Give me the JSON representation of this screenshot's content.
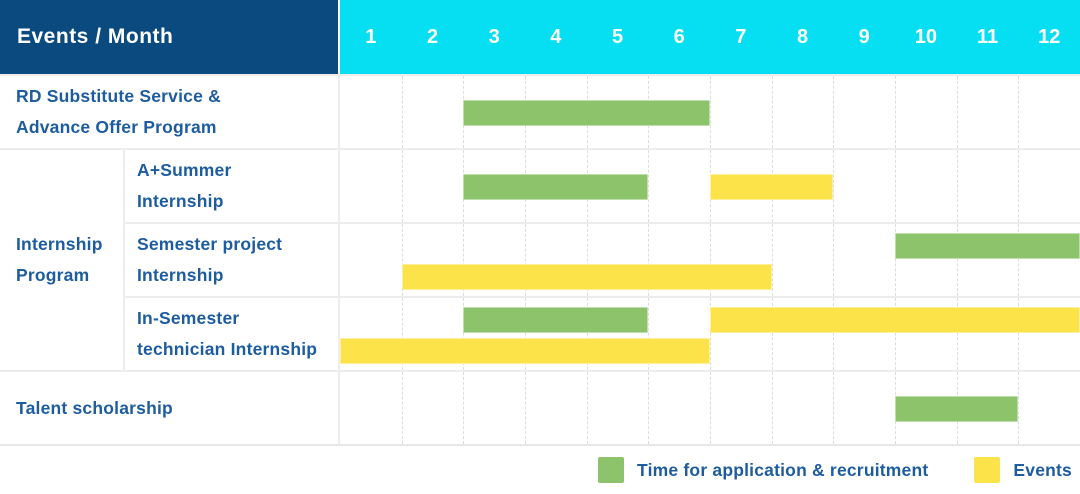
{
  "header": {
    "title": "Events / Month",
    "months": [
      "1",
      "2",
      "3",
      "4",
      "5",
      "6",
      "7",
      "8",
      "9",
      "10",
      "11",
      "12"
    ]
  },
  "gantt": {
    "group_label_lines": [
      "Internship",
      "Program"
    ],
    "rows": [
      {
        "label_lines": [
          "RD Substitute Service &",
          "Advance Offer Program"
        ],
        "bars": [
          {
            "color": "green",
            "track": "single",
            "start": 3,
            "end": 6
          }
        ]
      },
      {
        "label_lines": [
          "A+Summer",
          "Internship"
        ],
        "bars": [
          {
            "color": "green",
            "track": "single",
            "start": 3,
            "end": 5
          },
          {
            "color": "yellow",
            "track": "single",
            "start": 7,
            "end": 8
          }
        ]
      },
      {
        "label_lines": [
          "Semester project",
          "Internship"
        ],
        "bars": [
          {
            "color": "green",
            "track": "upper",
            "start": 10,
            "end": 12
          },
          {
            "color": "yellow",
            "track": "lower",
            "start": 2,
            "end": 7
          }
        ]
      },
      {
        "label_lines": [
          "In-Semester",
          "technician Internship"
        ],
        "bars": [
          {
            "color": "green",
            "track": "upper",
            "start": 3,
            "end": 5
          },
          {
            "color": "yellow",
            "track": "upper",
            "start": 7,
            "end": 12
          },
          {
            "color": "yellow",
            "track": "lower",
            "start": 1,
            "end": 6
          }
        ]
      },
      {
        "label_lines": [
          "Talent scholarship"
        ],
        "bars": [
          {
            "color": "green",
            "track": "single",
            "start": 10,
            "end": 11
          }
        ]
      }
    ]
  },
  "legend": {
    "items": [
      {
        "color": "green",
        "label": "Time for application & recruitment"
      },
      {
        "color": "yellow",
        "label": "Events"
      }
    ]
  },
  "colors": {
    "header_bg": "#0a4a7f",
    "months_bg": "#06def2",
    "green": "#8dc36b",
    "yellow": "#fde34a",
    "label_text": "#1d5c9f",
    "grid_line": "#dcdcdc"
  },
  "chart_data": {
    "type": "table",
    "title": "Events / Month",
    "x": {
      "label": "Month",
      "ticks": [
        1,
        2,
        3,
        4,
        5,
        6,
        7,
        8,
        9,
        10,
        11,
        12
      ],
      "range": [
        1,
        12
      ]
    },
    "legend": {
      "green": "Time for application & recruitment",
      "yellow": "Events"
    },
    "legend_position": "bottom-right",
    "rows": [
      {
        "event": "RD Substitute Service & Advance Offer Program",
        "group": null,
        "time_for_application_recruitment": [
          [
            3,
            6
          ]
        ],
        "events": []
      },
      {
        "event": "A+Summer Internship",
        "group": "Internship Program",
        "time_for_application_recruitment": [
          [
            3,
            5
          ]
        ],
        "events": [
          [
            7,
            8
          ]
        ]
      },
      {
        "event": "Semester project Internship",
        "group": "Internship Program",
        "time_for_application_recruitment": [
          [
            10,
            12
          ]
        ],
        "events": [
          [
            2,
            7
          ]
        ]
      },
      {
        "event": "In-Semester technician Internship",
        "group": "Internship Program",
        "time_for_application_recruitment": [
          [
            3,
            5
          ]
        ],
        "events": [
          [
            1,
            6
          ],
          [
            7,
            12
          ]
        ]
      },
      {
        "event": "Talent scholarship",
        "group": null,
        "time_for_application_recruitment": [
          [
            10,
            11
          ]
        ],
        "events": []
      }
    ]
  }
}
